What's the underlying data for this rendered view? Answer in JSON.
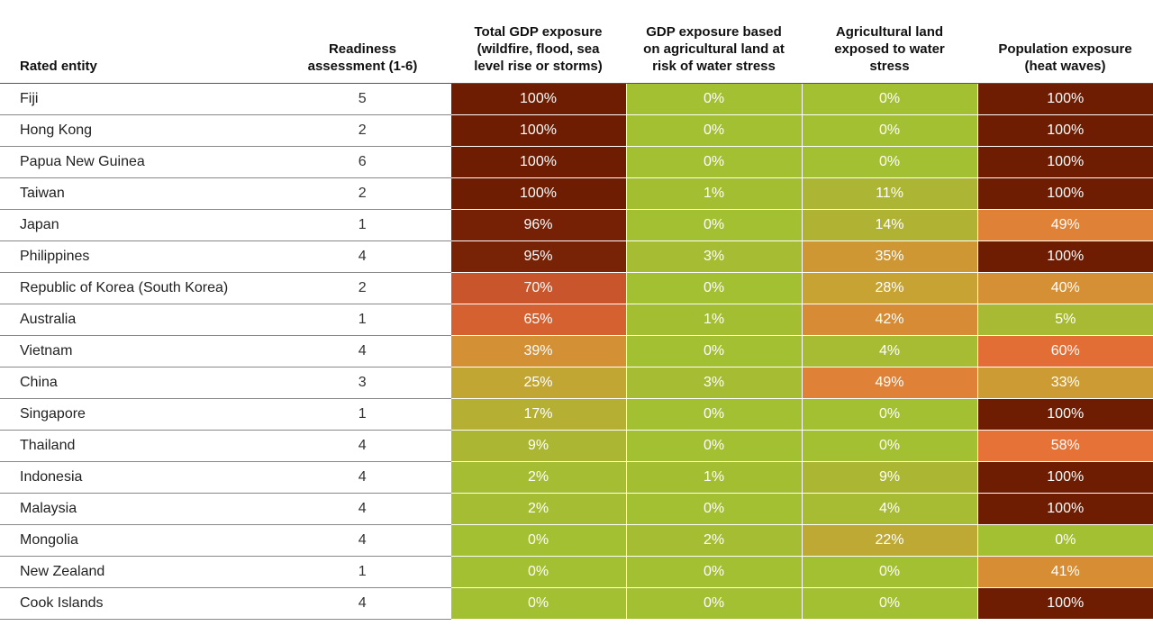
{
  "chart_data": {
    "type": "heatmap",
    "columns": [
      "Rated entity",
      "Readiness assessment (1-6)",
      "Total GDP exposure (wildfire, flood, sea level rise or storms)",
      "GDP exposure based on agricultural land at risk of water stress",
      "Agricultural land exposed to water stress",
      "Population exposure (heat waves)"
    ],
    "header_lines": [
      [
        "Rated entity"
      ],
      [
        "Readiness",
        "assessment (1-6)"
      ],
      [
        "Total GDP exposure",
        "(wildfire, flood, sea",
        "level rise or storms)"
      ],
      [
        "GDP exposure based",
        "on agricultural land at",
        "risk of water stress"
      ],
      [
        "Agricultural land",
        "exposed to water",
        "stress"
      ],
      [
        "Population exposure",
        "(heat waves)"
      ]
    ],
    "rows": [
      {
        "entity": "Fiji",
        "readiness": 5,
        "values": [
          100,
          0,
          0,
          100
        ]
      },
      {
        "entity": "Hong Kong",
        "readiness": 2,
        "values": [
          100,
          0,
          0,
          100
        ]
      },
      {
        "entity": "Papua New Guinea",
        "readiness": 6,
        "values": [
          100,
          0,
          0,
          100
        ]
      },
      {
        "entity": "Taiwan",
        "readiness": 2,
        "values": [
          100,
          1,
          11,
          100
        ]
      },
      {
        "entity": "Japan",
        "readiness": 1,
        "values": [
          96,
          0,
          14,
          49
        ]
      },
      {
        "entity": "Philippines",
        "readiness": 4,
        "values": [
          95,
          3,
          35,
          100
        ]
      },
      {
        "entity": "Republic of Korea (South Korea)",
        "readiness": 2,
        "values": [
          70,
          0,
          28,
          40
        ]
      },
      {
        "entity": "Australia",
        "readiness": 1,
        "values": [
          65,
          1,
          42,
          5
        ]
      },
      {
        "entity": "Vietnam",
        "readiness": 4,
        "values": [
          39,
          0,
          4,
          60
        ]
      },
      {
        "entity": "China",
        "readiness": 3,
        "values": [
          25,
          3,
          49,
          33
        ]
      },
      {
        "entity": "Singapore",
        "readiness": 1,
        "values": [
          17,
          0,
          0,
          100
        ]
      },
      {
        "entity": "Thailand",
        "readiness": 4,
        "values": [
          9,
          0,
          0,
          58
        ]
      },
      {
        "entity": "Indonesia",
        "readiness": 4,
        "values": [
          2,
          1,
          9,
          100
        ]
      },
      {
        "entity": "Malaysia",
        "readiness": 4,
        "values": [
          2,
          0,
          4,
          100
        ]
      },
      {
        "entity": "Mongolia",
        "readiness": 4,
        "values": [
          0,
          2,
          22,
          0
        ]
      },
      {
        "entity": "New Zealand",
        "readiness": 1,
        "values": [
          0,
          0,
          0,
          41
        ]
      },
      {
        "entity": "Cook Islands",
        "readiness": 4,
        "values": [
          0,
          0,
          0,
          100
        ]
      }
    ],
    "value_unit": "%",
    "color_scale": [
      "#a3bf32",
      "#b0b234",
      "#c8a233",
      "#d88a34",
      "#e97438",
      "#c4522a",
      "#8a2a0e",
      "#6e1d02"
    ],
    "text_color": "#ffffff"
  }
}
